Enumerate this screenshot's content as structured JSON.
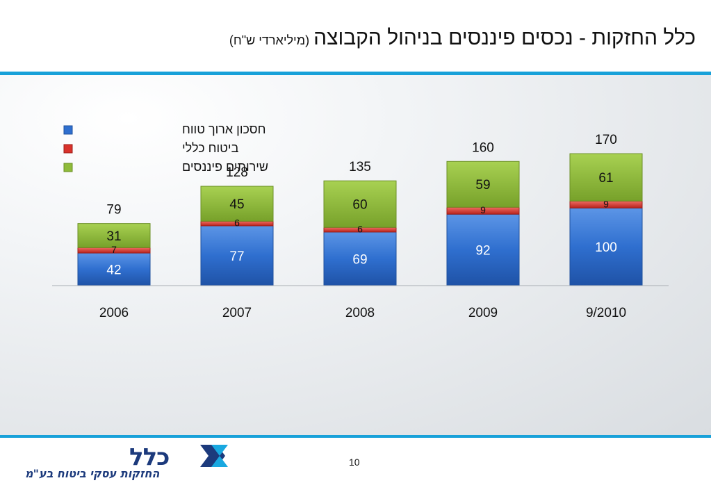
{
  "header": {
    "title": "כלל החזקות - נכסים פיננסים בניהול הקבוצה",
    "subtitle": "(מיליארדי ש\"ח)"
  },
  "footer": {
    "page_number": "10",
    "logo_wordmark": "כלל",
    "logo_tagline": "החזקות עסקי ביטוח בע\"מ"
  },
  "colors": {
    "rule": "#18a1d9",
    "long_term_savings": "#2f6fcf",
    "general_insurance": "#d9322b",
    "financial_services": "#8fbb3a"
  },
  "chart_data": {
    "type": "bar",
    "stacked": true,
    "categories": [
      "2006",
      "2007",
      "2008",
      "2009",
      "9/2010"
    ],
    "series": [
      {
        "name": "חסכון ארוך טווח",
        "values": [
          42,
          77,
          69,
          92,
          100
        ]
      },
      {
        "name": "ביטוח כללי",
        "values": [
          7,
          6,
          6,
          9,
          9
        ]
      },
      {
        "name": "שירותים פיננסים",
        "values": [
          31,
          45,
          60,
          59,
          61
        ]
      }
    ],
    "totals": [
      79,
      128,
      135,
      160,
      170
    ],
    "legend_position": "top-left",
    "grid": false
  }
}
